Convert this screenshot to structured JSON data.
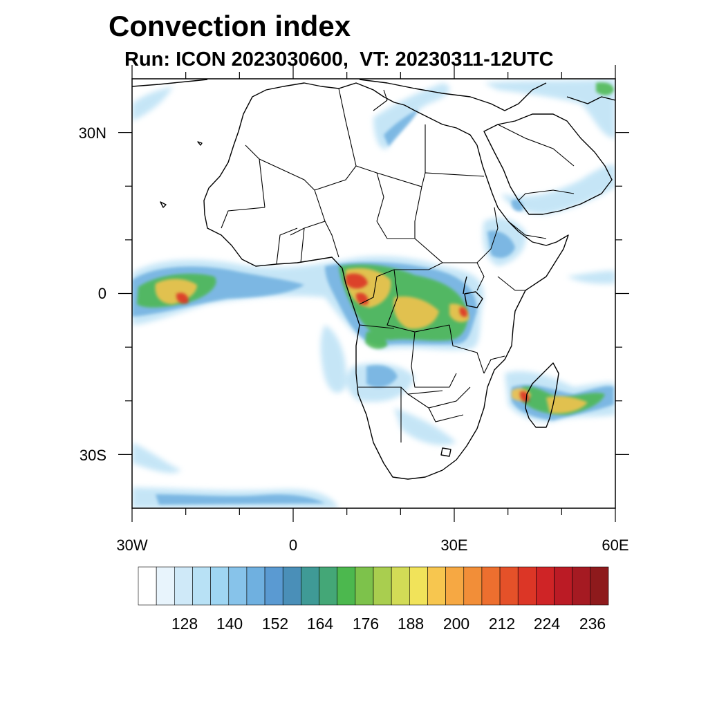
{
  "title": "Convection index",
  "subtitle": "Run: ICON 2023030600,  VT: 20230311-12UTC",
  "map": {
    "lon_range": [
      -30,
      60
    ],
    "lat_range": [
      -40,
      40
    ],
    "lat_ticks": [
      {
        "lat": 30,
        "label": "30N"
      },
      {
        "lat": 0,
        "label": "0"
      },
      {
        "lat": -30,
        "label": "30S"
      }
    ],
    "lon_ticks": [
      {
        "lon": -30,
        "label": "30W"
      },
      {
        "lon": 0,
        "label": "0"
      },
      {
        "lon": 30,
        "label": "30E"
      },
      {
        "lon": 60,
        "label": "60E"
      }
    ]
  },
  "colorbar": {
    "labels": [
      "128",
      "140",
      "152",
      "164",
      "176",
      "188",
      "200",
      "212",
      "224",
      "236"
    ],
    "colors": [
      "#ffffff",
      "#e8f4fc",
      "#cfe9f8",
      "#b8e1f5",
      "#9fd6f3",
      "#87c3ea",
      "#6fb0e0",
      "#5a9ad2",
      "#4a8fb8",
      "#3f9a96",
      "#44a777",
      "#4cb84e",
      "#7dc24b",
      "#a9ce4f",
      "#d2db56",
      "#f1e35a",
      "#f7c64f",
      "#f6a843",
      "#f28e38",
      "#ed6f2f",
      "#e55129",
      "#dc3626",
      "#cf2426",
      "#bb1b25",
      "#a51a22",
      "#8e1a1c"
    ]
  }
}
